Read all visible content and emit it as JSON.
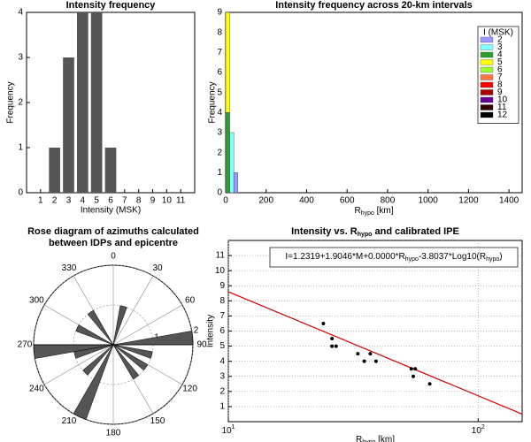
{
  "chart_data": [
    {
      "type": "bar",
      "title": "Intensity frequency",
      "xlabel": "Intensity (MSK)",
      "ylabel": "Frequency",
      "categories": [
        1,
        2,
        3,
        4,
        5,
        6,
        7,
        8,
        9,
        10,
        11
      ],
      "values": [
        0,
        1,
        3,
        4,
        4,
        1,
        0,
        0,
        0,
        0,
        0
      ],
      "color": "#555555",
      "xlim": [
        0,
        12
      ],
      "ylim": [
        0,
        4
      ],
      "yticks": [
        0,
        1,
        2,
        3,
        4
      ]
    },
    {
      "type": "histogram",
      "title": "Intensity frequency across 20-km intervals",
      "xlabel": [
        "R",
        "hypo",
        " [km]"
      ],
      "ylabel": "Frequency",
      "bins": [
        0,
        20,
        40,
        60
      ],
      "legend_title": "I (MSK)",
      "legend": "upper right",
      "series": [
        {
          "name": "2",
          "color": "#9999ff",
          "values": [
            0,
            0,
            1
          ]
        },
        {
          "name": "3",
          "color": "#80ffff",
          "values": [
            0,
            3,
            0
          ]
        },
        {
          "name": "4",
          "color": "#2ca02c",
          "values": [
            4,
            0,
            0
          ]
        },
        {
          "name": "5",
          "color": "#ffff00",
          "values": [
            5,
            0,
            0
          ]
        },
        {
          "name": "6",
          "color": "#99ff33",
          "values": [
            0,
            0,
            0
          ]
        },
        {
          "name": "7",
          "color": "#ff7744",
          "values": [
            0,
            0,
            0
          ]
        },
        {
          "name": "8",
          "color": "#ff0000",
          "values": [
            0,
            0,
            0
          ]
        },
        {
          "name": "9",
          "color": "#aa0000",
          "values": [
            0,
            0,
            0
          ]
        },
        {
          "name": "10",
          "color": "#660099",
          "values": [
            0,
            0,
            0
          ]
        },
        {
          "name": "11",
          "color": "#330000",
          "values": [
            0,
            0,
            0
          ]
        },
        {
          "name": "12",
          "color": "#000000",
          "values": [
            0,
            0,
            0
          ]
        }
      ],
      "xlim": [
        0,
        1465
      ],
      "xticks": [
        0,
        200,
        400,
        600,
        800,
        1000,
        1200,
        1400
      ],
      "ylim": [
        0,
        9
      ],
      "yticks": [
        0,
        1,
        2,
        3,
        4,
        5,
        6,
        7,
        8,
        9
      ]
    },
    {
      "type": "rose",
      "title": [
        "Rose diagram of azimuths calculated",
        "between  IDPs and epicentre"
      ],
      "bins": [
        [
          10,
          20
        ],
        [
          80,
          90
        ],
        [
          100,
          110
        ],
        [
          120,
          130
        ],
        [
          140,
          150
        ],
        [
          200,
          210
        ],
        [
          220,
          230
        ],
        [
          250,
          260
        ],
        [
          260,
          270
        ],
        [
          290,
          300
        ],
        [
          320,
          330
        ]
      ],
      "values": [
        1,
        2,
        1,
        1,
        1,
        2,
        1,
        1,
        2,
        1,
        1
      ],
      "color": "#555555",
      "rlim": [
        0,
        2
      ],
      "rticks": [
        1,
        2
      ],
      "thetaticks": [
        0,
        30,
        60,
        90,
        120,
        150,
        180,
        210,
        240,
        270,
        300,
        330
      ]
    },
    {
      "type": "scatter",
      "title": [
        "Intensity vs. R",
        "hypo",
        " and calibrated IPE"
      ],
      "xlabel": [
        "R",
        "hypo",
        " [km]"
      ],
      "ylabel": "Intensity",
      "x": [
        24,
        26,
        26,
        27,
        33,
        35,
        37,
        39,
        54,
        56,
        55,
        64
      ],
      "values": [
        6.5,
        5.5,
        5,
        5,
        4.5,
        4,
        4.5,
        4,
        3.5,
        3.5,
        3,
        2.5
      ],
      "color": "#000000",
      "fit": {
        "x": [
          10,
          150
        ],
        "values": [
          8.6,
          0.5
        ],
        "color": "#cc0000"
      },
      "annotation": [
        "I=1.2319+1.9046*M+0.0000*R",
        "hypo",
        "-3.8037*Log10(R",
        "hypo",
        ")"
      ],
      "xscale": "log",
      "xlim": [
        10,
        150
      ],
      "xticks": [
        {
          "value": 10,
          "label": "10",
          "exponent": "1"
        },
        {
          "value": 100,
          "label": "10",
          "exponent": "2"
        }
      ],
      "ylim": [
        0,
        12
      ],
      "yticks": [
        1,
        2,
        3,
        4,
        5,
        6,
        7,
        8,
        9,
        10,
        11
      ],
      "grid": true
    }
  ]
}
